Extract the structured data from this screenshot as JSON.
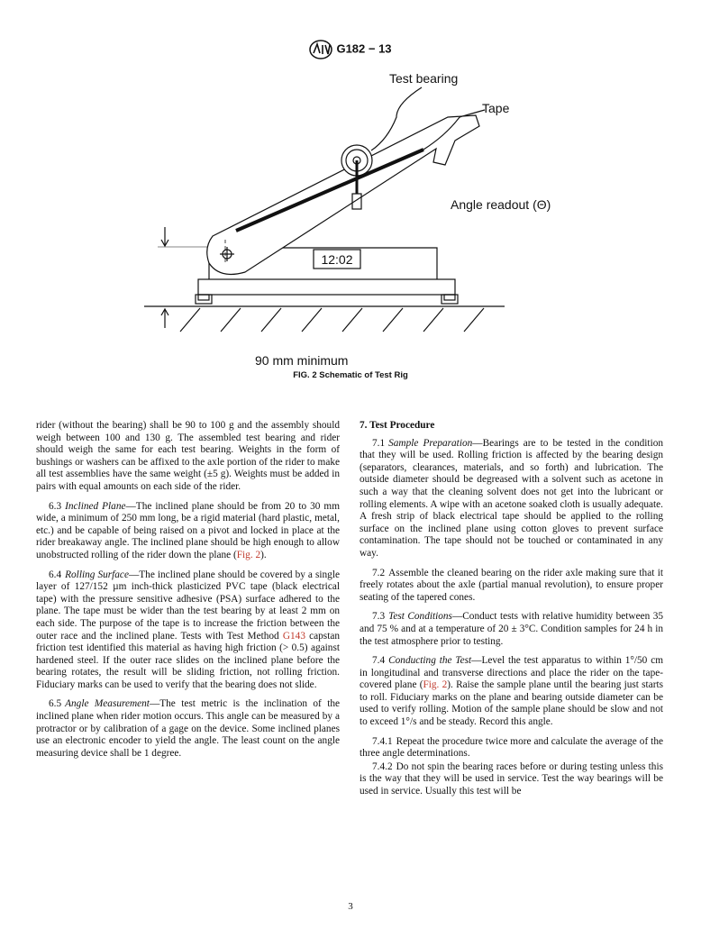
{
  "header": {
    "designation": "G182 − 13"
  },
  "figure": {
    "labels": {
      "test_bearing": "Test bearing",
      "tape": "Tape",
      "angle_readout": "Angle readout (Θ)",
      "display": "12:02",
      "dimension": "90 mm minimum"
    },
    "caption": "FIG. 2 Schematic of Test Rig"
  },
  "left_column": [
    {
      "body": [
        "rider (without the bearing) shall be 90 to 100 g and the assembly should weigh between 100 and 130 g. The assembled test bearing and rider should weigh the same for each test bearing. Weights in the form of bushings or washers can be affixed to the axle portion of the rider to make all test assemblies have the same weight (±5 g). Weights must be added in pairs with equal amounts on each side of the rider."
      ]
    },
    {
      "number": "6.3",
      "heading": "Inclined Plane",
      "body": [
        "—The inclined plane should be from 20 to 30 mm wide, a minimum of 250 mm long, be a rigid material (hard plastic, metal, etc.) and be capable of being raised on a pivot and locked in place at the rider breakaway angle. The inclined plane should be high enough to allow unobstructed rolling of the rider down the plane (",
        "Fig. 2",
        ")."
      ]
    },
    {
      "number": "6.4",
      "heading": "Rolling Surface",
      "body": [
        "—The inclined plane should be covered by a single layer of 127/152 µm inch-thick plasticized PVC tape (black electrical tape) with the pressure sensitive adhesive (PSA) surface adhered to the plane. The tape must be wider than the test bearing by at least 2 mm on each side. The purpose of the tape is to increase the friction between the outer race and the inclined plane. Tests with Test Method ",
        "G143",
        " capstan friction test identified this material as having high friction (> 0.5) against hardened steel. If the outer race slides on the inclined plane before the bearing rotates, the result will be sliding friction, not rolling friction. Fiduciary marks can be used to verify that the bearing does not slide."
      ]
    },
    {
      "number": "6.5",
      "heading": "Angle Measurement",
      "body": [
        "—The test metric is the inclination of the inclined plane when rider motion occurs. This angle can be measured by a protractor or by calibration of a gage on the device. Some inclined planes use an electronic encoder to yield the angle. The least count on the angle measuring device shall be 1 degree."
      ]
    }
  ],
  "right_column": {
    "section_title": "7. Test Procedure",
    "paragraphs": [
      {
        "number": "7.1",
        "heading": "Sample Preparation",
        "body": [
          "—Bearings are to be tested in the condition that they will be used. Rolling friction is affected by the bearing design (separators, clearances, materials, and so forth) and lubrication. The outside diameter should be degreased with a solvent such as acetone in such a way that the cleaning solvent does not get into the lubricant or rolling elements. A wipe with an acetone soaked cloth is usually adequate. A fresh strip of black electrical tape should be applied to the rolling surface on the inclined plane using cotton gloves to prevent surface contamination. The tape should not be touched or contaminated in any way."
        ]
      },
      {
        "number": "7.2",
        "body": [
          "Assemble the cleaned bearing on the rider axle making sure that it freely rotates about the axle (partial manual revolution), to ensure proper seating of the tapered cones."
        ]
      },
      {
        "number": "7.3",
        "heading": "Test Conditions",
        "body": [
          "—Conduct tests with relative humidity between 35 and 75 % and at a temperature of 20 ± 3°C. Condition samples for 24 h in the test atmosphere prior to testing."
        ]
      },
      {
        "number": "7.4",
        "heading": "Conducting the Test",
        "body": [
          "—Level the test apparatus to within 1°/50 cm in longitudinal and transverse directions and place the rider on the tape-covered plane (",
          "Fig. 2",
          "). Raise the sample plane until the bearing just starts to roll. Fiduciary marks on the plane and bearing outside diameter can be used to verify rolling. Motion of the sample plane should be slow and not to exceed 1°/s and be steady. Record this angle."
        ]
      },
      {
        "number": "7.4.1",
        "body": [
          "Repeat the procedure twice more and calculate the average of the three angle determinations."
        ]
      },
      {
        "number": "7.4.2",
        "body": [
          "Do not spin the bearing races before or during testing unless this is the way that they will be used in service. Test the way bearings will be used in service. Usually this test will be"
        ]
      }
    ]
  },
  "footer": {
    "page_number": "3"
  }
}
